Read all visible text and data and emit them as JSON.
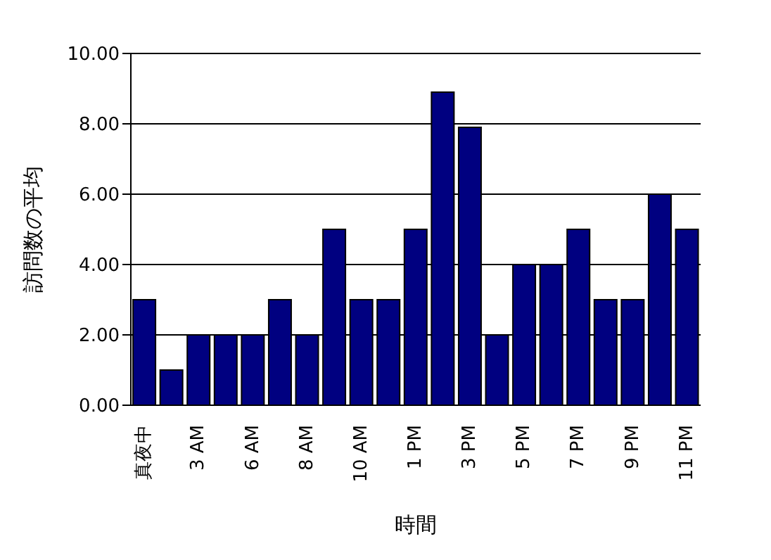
{
  "chart_data": {
    "type": "bar",
    "xlabel": "時間",
    "ylabel": "訪問数の平均",
    "categories": [
      "真夜中",
      null,
      "3 AM",
      null,
      "6 AM",
      null,
      "8 AM",
      null,
      "10 AM",
      null,
      "1 PM",
      null,
      "3 PM",
      null,
      "5 PM",
      null,
      "7 PM",
      null,
      "9 PM",
      null,
      "11 PM"
    ],
    "values": [
      3,
      1,
      2,
      2,
      2,
      3,
      2,
      5,
      3,
      3,
      5,
      8.9,
      7.9,
      2,
      4,
      4,
      5,
      3,
      3,
      6,
      5
    ],
    "color": "#000080",
    "ylim": [
      0,
      10
    ],
    "yticks": [
      {
        "value": 0,
        "label": "0.00"
      },
      {
        "value": 2,
        "label": "2.00"
      },
      {
        "value": 4,
        "label": "4.00"
      },
      {
        "value": 6,
        "label": "6.00"
      },
      {
        "value": 8,
        "label": "8.00"
      },
      {
        "value": 10,
        "label": "10.00"
      }
    ],
    "grid": "y"
  }
}
